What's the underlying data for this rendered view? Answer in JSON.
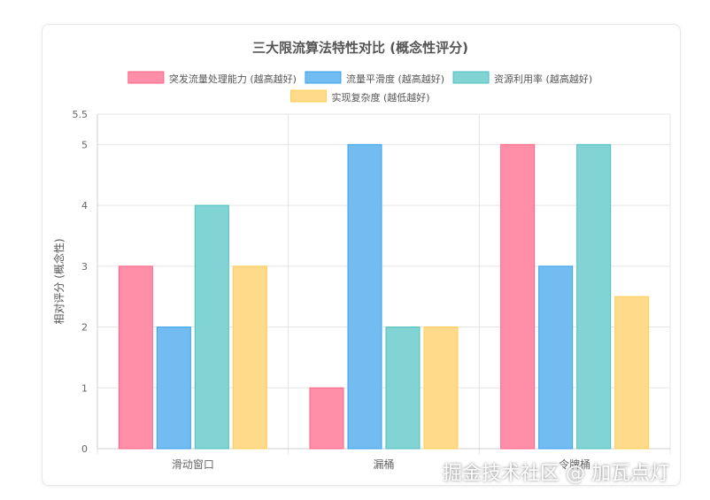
{
  "chart_data": {
    "type": "bar",
    "title": "三大限流算法特性对比 (概念性评分)",
    "ylabel": "相对评分 (概念性)",
    "xlabel": "",
    "categories": [
      "滑动窗口",
      "漏桶",
      "令牌桶"
    ],
    "ylim": [
      0,
      5.5
    ],
    "yticks": [
      0,
      1,
      2,
      3,
      4,
      5,
      5.5
    ],
    "grid": true,
    "legend_position": "top",
    "series": [
      {
        "name": "突发流量处理能力 (越高越好)",
        "values": [
          3,
          1,
          5
        ],
        "color": "#ff8fa8",
        "border": "#ff6384"
      },
      {
        "name": "流量平滑度 (越高越好)",
        "values": [
          2,
          5,
          3
        ],
        "color": "#72bcf2",
        "border": "#36a2eb"
      },
      {
        "name": "资源利用率 (越高越好)",
        "values": [
          4,
          2,
          5
        ],
        "color": "#82d3d3",
        "border": "#4bc0c0"
      },
      {
        "name": "实现复杂度 (越低越好)",
        "values": [
          3,
          2,
          2.5
        ],
        "color": "#ffda8a",
        "border": "#ffcd56"
      }
    ]
  },
  "watermark": "掘金技术社区 @ 加瓦点灯"
}
